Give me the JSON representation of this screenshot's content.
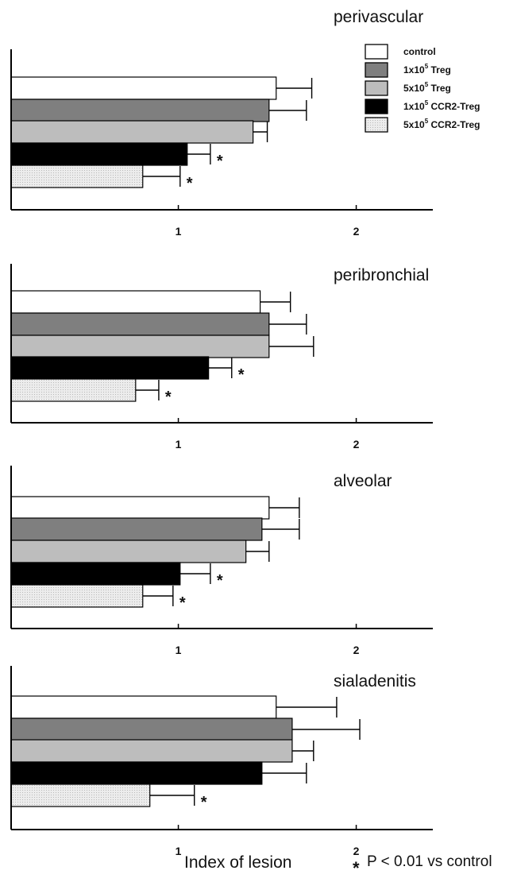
{
  "chart_data": {
    "type": "bar",
    "orientation": "horizontal",
    "xlabel": "Index of lesion",
    "xticks": [
      "1",
      "2"
    ],
    "xlim": [
      0.06,
      2.45
    ],
    "grid": false,
    "legend_position": "top-right",
    "footnote": {
      "symbol": "*",
      "text": "P < 0.01 vs control"
    },
    "series": [
      {
        "name": "control",
        "legend_base": "control",
        "legend_sup": "",
        "legend_suffix": "",
        "color": "#ffffff"
      },
      {
        "name": "1x10^5 Treg",
        "legend_base": "1x10",
        "legend_sup": "5",
        "legend_suffix": " Treg",
        "color": "#7f7f7f"
      },
      {
        "name": "5x10^5 Treg",
        "legend_base": "5x10",
        "legend_sup": "5",
        "legend_suffix": " Treg",
        "color": "#bdbdbd"
      },
      {
        "name": "1x10^5 CCR2-Treg",
        "legend_base": "1x10",
        "legend_sup": "5",
        "legend_suffix": " CCR2-Treg",
        "color": "#000000"
      },
      {
        "name": "5x10^5 CCR2-Treg",
        "legend_base": "5x10",
        "legend_sup": "5",
        "legend_suffix": " CCR2-Treg",
        "color": "#ececec"
      }
    ],
    "panels": [
      {
        "title": "perivascular",
        "values": [
          1.55,
          1.51,
          1.42,
          1.05,
          0.8
        ],
        "errors": [
          0.2,
          0.21,
          0.08,
          0.13,
          0.21
        ],
        "significant": [
          false,
          false,
          false,
          true,
          true
        ]
      },
      {
        "title": "peribronchial",
        "values": [
          1.46,
          1.51,
          1.51,
          1.17,
          0.76
        ],
        "errors": [
          0.17,
          0.21,
          0.25,
          0.13,
          0.13
        ],
        "significant": [
          false,
          false,
          false,
          true,
          true
        ]
      },
      {
        "title": "alveolar",
        "values": [
          1.51,
          1.47,
          1.38,
          1.01,
          0.8
        ],
        "errors": [
          0.17,
          0.21,
          0.13,
          0.17,
          0.17
        ],
        "significant": [
          false,
          false,
          false,
          true,
          true
        ]
      },
      {
        "title": "sialadenitis",
        "values": [
          1.55,
          1.64,
          1.64,
          1.47,
          0.84
        ],
        "errors": [
          0.34,
          0.38,
          0.12,
          0.25,
          0.25
        ],
        "significant": [
          false,
          false,
          false,
          false,
          true
        ]
      }
    ]
  }
}
